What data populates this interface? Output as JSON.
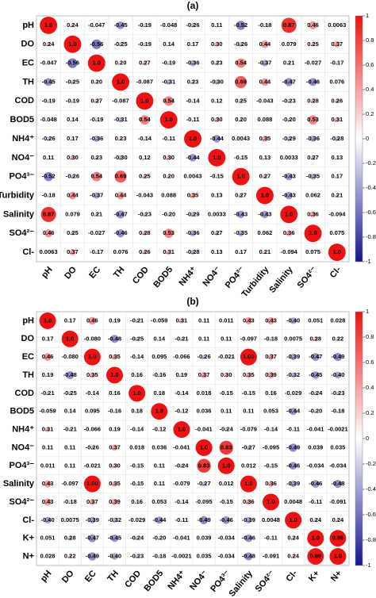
{
  "chart_data": [
    {
      "type": "correlation",
      "title": "(a)",
      "categories": [
        "pH",
        "DO",
        "EC",
        "TH",
        "COD",
        "BOD5",
        "NH4⁺",
        "NO4⁻",
        "PO4³⁻",
        "Turbidity",
        "Salinity",
        "SO4²⁻",
        "Cl-"
      ],
      "values": [
        [
          1,
          0.24,
          -0.047,
          -0.45,
          -0.19,
          -0.048,
          -0.26,
          0.11,
          -0.52,
          -0.18,
          0.87,
          0.46,
          0.0063
        ],
        [
          0.24,
          1,
          -0.56,
          -0.25,
          -0.19,
          0.14,
          0.17,
          0.3,
          -0.26,
          0.44,
          0.079,
          0.25,
          0.37
        ],
        [
          -0.047,
          -0.56,
          1,
          0.2,
          0.27,
          -0.19,
          -0.36,
          0.23,
          0.54,
          -0.37,
          0.21,
          -0.027,
          -0.17
        ],
        [
          -0.45,
          -0.25,
          0.2,
          1,
          -0.087,
          -0.31,
          0.23,
          -0.3,
          0.69,
          0.44,
          -0.47,
          -0.46,
          0.076
        ],
        [
          -0.19,
          -0.19,
          0.27,
          -0.087,
          1,
          0.54,
          -0.14,
          0.12,
          0.25,
          -0.043,
          -0.23,
          0.28,
          0.26
        ],
        [
          -0.048,
          0.14,
          -0.19,
          -0.31,
          0.54,
          1,
          -0.11,
          0.3,
          0.2,
          0.088,
          -0.2,
          0.53,
          0.31
        ],
        [
          -0.26,
          0.17,
          -0.36,
          0.23,
          -0.14,
          -0.11,
          1,
          -0.44,
          0.0043,
          0.35,
          -0.29,
          -0.36,
          -0.28
        ],
        [
          0.11,
          0.3,
          0.23,
          -0.3,
          0.12,
          0.3,
          -0.44,
          1,
          -0.15,
          0.13,
          0.0033,
          0.27,
          0.13
        ],
        [
          -0.52,
          -0.26,
          0.54,
          0.69,
          0.25,
          0.2,
          0.0043,
          -0.15,
          1,
          0.27,
          -0.43,
          -0.35,
          0.17
        ],
        [
          -0.18,
          0.44,
          -0.37,
          0.44,
          -0.043,
          0.088,
          0.35,
          0.13,
          0.27,
          1,
          -0.43,
          0.062,
          0.21
        ],
        [
          0.87,
          0.079,
          0.21,
          -0.47,
          -0.23,
          -0.2,
          -0.29,
          0.0033,
          -0.43,
          -0.43,
          1,
          0.36,
          -0.094
        ],
        [
          0.46,
          0.25,
          -0.027,
          -0.46,
          0.28,
          0.53,
          -0.36,
          0.27,
          -0.35,
          0.062,
          0.36,
          1,
          0.075
        ],
        [
          0.0063,
          0.37,
          -0.17,
          0.076,
          0.26,
          0.31,
          -0.28,
          0.13,
          0.17,
          0.21,
          -0.094,
          0.075,
          1
        ]
      ],
      "value_labels": [
        [
          "1.0",
          "0.24",
          "-0.047",
          "-0.45",
          "-0.19",
          "-0.048",
          "-0.26",
          "0.11",
          "-0.52",
          "-0.18",
          "0.87",
          "0.46",
          "0.0063"
        ],
        [
          "0.24",
          "1.0",
          "-0.56",
          "-0.25",
          "-0.19",
          "0.14",
          "0.17",
          "0.30",
          "-0.26",
          "0.44",
          "0.079",
          "0.25",
          "0.37"
        ],
        [
          "-0.047",
          "-0.56",
          "1.0",
          "0.20",
          "0.27",
          "-0.19",
          "-0.36",
          "0.23",
          "0.54",
          "-0.37",
          "0.21",
          "-0.027",
          "-0.17"
        ],
        [
          "-0.45",
          "-0.25",
          "0.20",
          "1.0",
          "-0.087",
          "-0.31",
          "0.23",
          "-0.30",
          "0.69",
          "0.44",
          "-0.47",
          "-0.46",
          "0.076"
        ],
        [
          "-0.19",
          "-0.19",
          "0.27",
          "-0.087",
          "1.0",
          "0.54",
          "-0.14",
          "0.12",
          "0.25",
          "-0.043",
          "-0.23",
          "0.28",
          "0.26"
        ],
        [
          "-0.048",
          "0.14",
          "-0.19",
          "-0.31",
          "0.54",
          "1.0",
          "-0.11",
          "0.30",
          "0.20",
          "0.088",
          "-0.20",
          "0.53",
          "0.31"
        ],
        [
          "-0.26",
          "0.17",
          "-0.36",
          "0.23",
          "-0.14",
          "-0.11",
          "1.0",
          "-0.44",
          "0.0043",
          "0.35",
          "-0.29",
          "-0.36",
          "-0.28"
        ],
        [
          "0.11",
          "0.30",
          "0.23",
          "-0.30",
          "0.12",
          "0.30",
          "-0.44",
          "1.0",
          "-0.15",
          "0.13",
          "0.0033",
          "0.27",
          "0.13"
        ],
        [
          "-0.52",
          "-0.26",
          "0.54",
          "0.69",
          "0.25",
          "0.20",
          "0.0043",
          "-0.15",
          "1.0",
          "0.27",
          "-0.43",
          "-0.35",
          "0.17"
        ],
        [
          "-0.18",
          "0.44",
          "-0.37",
          "0.44",
          "-0.043",
          "0.088",
          "0.35",
          "0.13",
          "0.27",
          "1.0",
          "-0.43",
          "0.062",
          "0.21"
        ],
        [
          "0.87",
          "0.079",
          "0.21",
          "-0.47",
          "-0.23",
          "-0.20",
          "-0.29",
          "0.0033",
          "-0.43",
          "-0.43",
          "1.0",
          "0.36",
          "-0.094"
        ],
        [
          "0.46",
          "0.25",
          "-0.027",
          "-0.46",
          "0.28",
          "0.53",
          "-0.36",
          "0.27",
          "-0.35",
          "0.062",
          "0.36",
          "1.0",
          "0.075"
        ],
        [
          "0.0063",
          "0.37",
          "-0.17",
          "0.076",
          "0.26",
          "0.31",
          "-0.28",
          "0.13",
          "0.17",
          "0.21",
          "-0.094",
          "0.075",
          "1.0"
        ]
      ],
      "clim": [
        -1,
        1
      ],
      "cticks": [
        1,
        0.8,
        0.6,
        0.4,
        0.2,
        0,
        -0.2,
        -0.4,
        -0.6,
        -0.8,
        -1
      ],
      "colorscale": [
        "#14148f",
        "#ffffff",
        "#ee1111"
      ]
    },
    {
      "type": "correlation",
      "title": "(b)",
      "categories": [
        "pH",
        "DO",
        "EC",
        "TH",
        "COD",
        "BOD5",
        "NH4⁺",
        "NO4⁻",
        "PO4³⁻",
        "Salinity",
        "SO4²⁻",
        "Cl-",
        "K+",
        "N+"
      ],
      "values": [
        [
          1,
          0.17,
          0.46,
          0.19,
          -0.21,
          -0.059,
          0.31,
          0.11,
          0.011,
          0.43,
          0.43,
          -0.4,
          0.051,
          0.028
        ],
        [
          0.17,
          1,
          -0.08,
          -0.48,
          -0.25,
          0.14,
          -0.21,
          0.11,
          0.11,
          -0.097,
          -0.18,
          0.0075,
          0.28,
          0.22
        ],
        [
          0.46,
          -0.08,
          1,
          0.35,
          -0.14,
          0.095,
          -0.066,
          -0.26,
          -0.021,
          1,
          0.37,
          -0.39,
          -0.47,
          -0.49
        ],
        [
          0.19,
          -0.48,
          0.35,
          1,
          0.16,
          -0.16,
          0.19,
          0.37,
          0.3,
          0.35,
          0.39,
          -0.32,
          -0.45,
          -0.4
        ],
        [
          -0.21,
          -0.25,
          -0.14,
          0.16,
          1,
          0.18,
          -0.14,
          0.018,
          -0.15,
          -0.15,
          0.16,
          -0.029,
          -0.24,
          -0.23
        ],
        [
          -0.059,
          0.14,
          0.095,
          -0.16,
          0.18,
          1,
          -0.12,
          0.036,
          0.11,
          0.11,
          0.053,
          -0.44,
          -0.2,
          -0.18
        ],
        [
          0.31,
          -0.21,
          -0.066,
          0.19,
          -0.14,
          -0.12,
          1,
          -0.041,
          -0.24,
          -0.079,
          -0.14,
          -0.11,
          -0.041,
          -0.0021
        ],
        [
          0.11,
          0.11,
          -0.26,
          0.37,
          0.018,
          0.036,
          -0.041,
          1,
          0.83,
          -0.27,
          -0.095,
          -0.49,
          0.039,
          0.035
        ],
        [
          0.011,
          0.11,
          -0.021,
          0.3,
          -0.15,
          0.11,
          -0.24,
          0.83,
          1,
          0.012,
          -0.15,
          -0.46,
          -0.034,
          -0.034
        ],
        [
          0.43,
          -0.097,
          1,
          0.35,
          -0.15,
          0.11,
          -0.079,
          -0.27,
          0.012,
          1,
          0.36,
          -0.39,
          -0.46,
          -0.48
        ],
        [
          0.43,
          -0.18,
          0.37,
          0.39,
          0.16,
          0.053,
          -0.14,
          -0.095,
          -0.15,
          0.36,
          1,
          0.0048,
          -0.11,
          -0.091
        ],
        [
          -0.4,
          0.0075,
          -0.39,
          -0.32,
          -0.029,
          -0.44,
          -0.11,
          -0.49,
          -0.46,
          -0.39,
          0.0048,
          1,
          0.24,
          0.24
        ],
        [
          0.051,
          0.28,
          -0.47,
          -0.45,
          -0.24,
          -0.2,
          -0.041,
          0.039,
          -0.034,
          -0.46,
          -0.11,
          0.24,
          1,
          0.99
        ],
        [
          0.028,
          0.22,
          -0.49,
          -0.4,
          -0.23,
          -0.18,
          -0.0021,
          0.035,
          -0.034,
          -0.48,
          -0.091,
          0.24,
          0.99,
          1
        ]
      ],
      "value_labels": [
        [
          "1.0",
          "0.17",
          "0.46",
          "0.19",
          "-0.21",
          "-0.059",
          "0.31",
          "0.11",
          "0.011",
          "0.43",
          "0.43",
          "-0.40",
          "0.051",
          "0.028"
        ],
        [
          "0.17",
          "1.0",
          "-0.080",
          "-0.48",
          "-0.25",
          "0.14",
          "-0.21",
          "0.11",
          "0.11",
          "-0.097",
          "-0.18",
          "0.0075",
          "0.28",
          "0.22"
        ],
        [
          "0.46",
          "-0.080",
          "1.0",
          "0.35",
          "-0.14",
          "0.095",
          "-0.066",
          "-0.26",
          "-0.021",
          "1.00",
          "0.37",
          "-0.39",
          "-0.47",
          "-0.49"
        ],
        [
          "0.19",
          "-0.48",
          "0.35",
          "1.0",
          "0.16",
          "-0.16",
          "0.19",
          "0.37",
          "0.30",
          "0.35",
          "0.39",
          "-0.32",
          "-0.45",
          "-0.40"
        ],
        [
          "-0.21",
          "-0.25",
          "-0.14",
          "0.16",
          "1.0",
          "0.18",
          "-0.14",
          "0.018",
          "-0.15",
          "-0.15",
          "0.16",
          "-0.029",
          "-0.24",
          "-0.23"
        ],
        [
          "-0.059",
          "0.14",
          "0.095",
          "-0.16",
          "0.18",
          "1.0",
          "-0.12",
          "0.036",
          "0.11",
          "0.11",
          "0.053",
          "-0.44",
          "-0.20",
          "-0.18"
        ],
        [
          "0.31",
          "-0.21",
          "-0.066",
          "0.19",
          "-0.14",
          "-0.12",
          "1.0",
          "-0.041",
          "-0.24",
          "-0.079",
          "-0.14",
          "-0.11",
          "-0.041",
          "-0.0021"
        ],
        [
          "0.11",
          "0.11",
          "-0.26",
          "0.37",
          "0.018",
          "0.036",
          "-0.041",
          "1.0",
          "0.83",
          "-0.27",
          "-0.095",
          "-0.49",
          "0.039",
          "0.035"
        ],
        [
          "0.011",
          "0.11",
          "-0.021",
          "0.30",
          "-0.15",
          "0.11",
          "-0.24",
          "0.83",
          "1.0",
          "0.012",
          "-0.15",
          "-0.46",
          "-0.034",
          "-0.034"
        ],
        [
          "0.43",
          "-0.097",
          "1.00",
          "0.35",
          "-0.15",
          "0.11",
          "-0.079",
          "-0.27",
          "0.012",
          "1.0",
          "0.36",
          "-0.39",
          "-0.46",
          "-0.48"
        ],
        [
          "0.43",
          "-0.18",
          "0.37",
          "0.39",
          "0.16",
          "0.053",
          "-0.14",
          "-0.095",
          "-0.15",
          "0.36",
          "1.0",
          "0.0048",
          "-0.11",
          "-0.091"
        ],
        [
          "-0.40",
          "0.0075",
          "-0.39",
          "-0.32",
          "-0.029",
          "-0.44",
          "-0.11",
          "-0.49",
          "-0.46",
          "-0.39",
          "0.0048",
          "1.0",
          "0.24",
          "0.24"
        ],
        [
          "0.051",
          "0.28",
          "-0.47",
          "-0.45",
          "-0.24",
          "-0.20",
          "-0.041",
          "0.039",
          "-0.034",
          "-0.46",
          "-0.11",
          "0.24",
          "1.0",
          "0.99"
        ],
        [
          "0.028",
          "0.22",
          "-0.49",
          "-0.40",
          "-0.23",
          "-0.18",
          "-0.0021",
          "0.035",
          "-0.034",
          "-0.48",
          "-0.091",
          "0.24",
          "0.99",
          "1.0"
        ]
      ],
      "clim": [
        -1,
        1
      ],
      "cticks": [
        1,
        0.8,
        0.6,
        0.4,
        0.2,
        0,
        -0.2,
        -0.4,
        -0.6,
        -0.8,
        -1
      ],
      "colorscale": [
        "#14148f",
        "#ffffff",
        "#ee1111"
      ]
    }
  ]
}
